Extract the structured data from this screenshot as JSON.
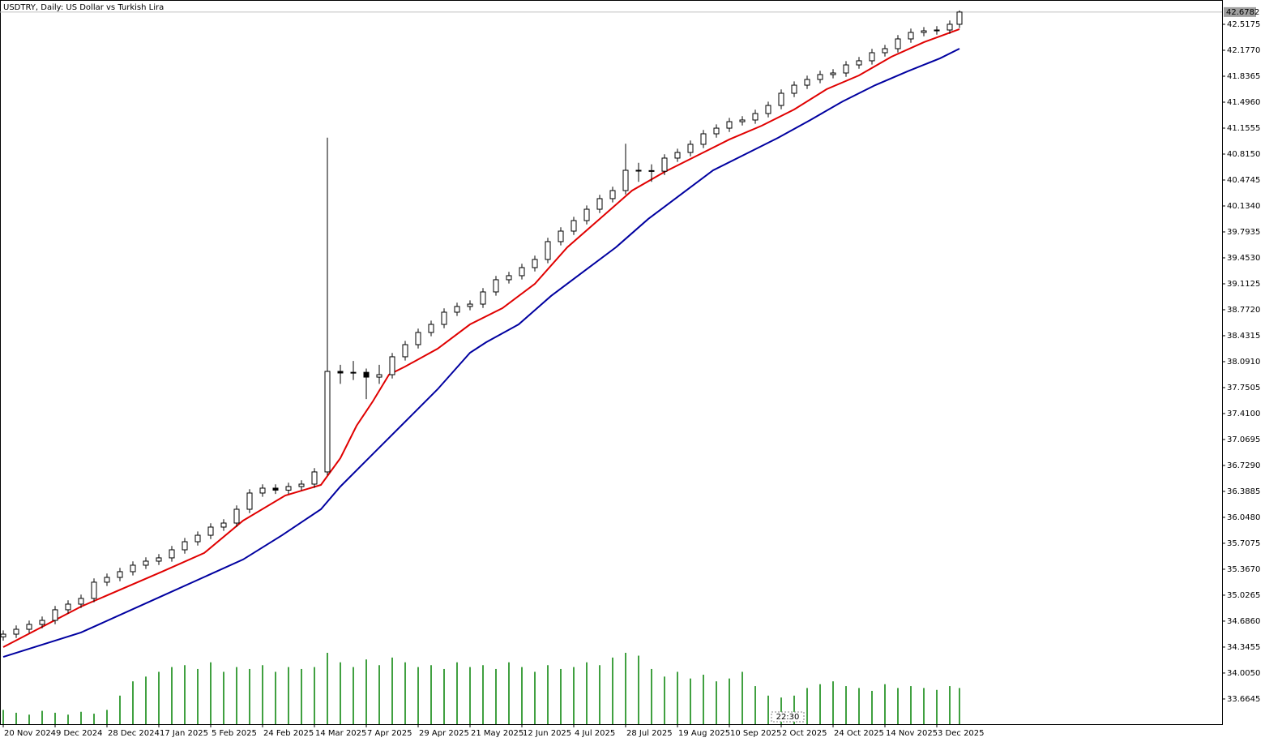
{
  "chart_data": {
    "type": "candlestick",
    "title": "USDTRY, Daily:  US Dollar vs Turkish Lira",
    "last_price": 42.6782,
    "time_marker": "22:30",
    "xlim": [
      -1,
      376
    ],
    "ylim": [
      33.334,
      42.8367
    ],
    "yticks": [
      42.5175,
      {
        "value": 42.177,
        "label": "42.1770"
      },
      41.8365,
      {
        "value": 41.496,
        "label": "41.4960"
      },
      41.1555,
      {
        "value": 40.815,
        "label": "40.8150"
      },
      40.4745,
      {
        "value": 40.134,
        "label": "40.1340"
      },
      39.7935,
      {
        "value": 39.453,
        "label": "39.4530"
      },
      39.1125,
      {
        "value": 38.772,
        "label": "38.7720"
      },
      38.4315,
      {
        "value": 38.091,
        "label": "38.0910"
      },
      37.7505,
      {
        "value": 37.41,
        "label": "37.4100"
      },
      37.0695,
      {
        "value": 36.729,
        "label": "36.7290"
      },
      36.3885,
      {
        "value": 36.048,
        "label": "36.0480"
      },
      35.7075,
      {
        "value": 35.367,
        "label": "35.3670"
      },
      35.0265,
      {
        "value": 34.686,
        "label": "34.6860"
      },
      34.3455,
      {
        "value": 34.005,
        "label": "34.0050"
      },
      33.6645
    ],
    "xticks": [
      {
        "value": 0,
        "label": "20 Nov 2024"
      },
      {
        "value": 16,
        "label": "9 Dec 2024"
      },
      {
        "value": 32,
        "label": "28 Dec 2024"
      },
      {
        "value": 48,
        "label": "17 Jan 2025"
      },
      {
        "value": 64,
        "label": "5 Feb 2025"
      },
      {
        "value": 80,
        "label": "24 Feb 2025"
      },
      {
        "value": 96,
        "label": "14 Mar 2025"
      },
      {
        "value": 112,
        "label": "7 Apr 2025"
      },
      {
        "value": 128,
        "label": "29 Apr 2025"
      },
      {
        "value": 144,
        "label": "21 May 2025"
      },
      {
        "value": 160,
        "label": "12 Jun 2025"
      },
      {
        "value": 176,
        "label": "4 Jul 2025"
      },
      {
        "value": 192,
        "label": "28 Jul 2025"
      },
      {
        "value": 208,
        "label": "19 Aug 2025"
      },
      {
        "value": 224,
        "label": "10 Sep 2025"
      },
      {
        "value": 240,
        "label": "2 Oct 2025"
      },
      {
        "value": 256,
        "label": "24 Oct 2025"
      },
      {
        "value": 272,
        "label": "14 Nov 2025"
      },
      {
        "value": 288,
        "label": "3 Dec 2025"
      }
    ],
    "x": [
      0,
      4,
      8,
      12,
      16,
      20,
      24,
      28,
      32,
      36,
      40,
      44,
      48,
      52,
      56,
      60,
      64,
      68,
      72,
      76,
      80,
      84,
      88,
      92,
      96,
      100,
      104,
      108,
      112,
      116,
      120,
      124,
      128,
      132,
      136,
      140,
      144,
      148,
      152,
      156,
      160,
      164,
      168,
      172,
      176,
      180,
      184,
      188,
      192,
      196,
      200,
      204,
      208,
      212,
      216,
      220,
      224,
      228,
      232,
      236,
      240,
      244,
      248,
      252,
      256,
      260,
      264,
      268,
      272,
      276,
      280,
      284,
      288,
      292,
      295
    ],
    "open": [
      34.48,
      34.515,
      34.579,
      34.643,
      34.696,
      34.835,
      34.909,
      34.984,
      35.197,
      35.26,
      35.335,
      35.42,
      35.473,
      35.516,
      35.622,
      35.728,
      35.813,
      35.92,
      35.973,
      36.154,
      36.367,
      36.431,
      36.405,
      36.452,
      36.484,
      36.644,
      37.963,
      37.942,
      37.951,
      37.888,
      37.92,
      38.155,
      38.314,
      38.474,
      38.58,
      38.74,
      38.815,
      38.846,
      39.006,
      39.166,
      39.219,
      39.325,
      39.432,
      39.666,
      39.804,
      39.942,
      40.091,
      40.23,
      40.336,
      40.602,
      40.598,
      40.59,
      40.762,
      40.836,
      40.943,
      41.081,
      41.155,
      41.24,
      41.262,
      41.347,
      41.453,
      41.613,
      41.719,
      41.794,
      41.858,
      41.879,
      41.985,
      42.039,
      42.145,
      42.198,
      42.326,
      42.411,
      42.432,
      42.443,
      42.518
    ],
    "high": [
      34.565,
      34.629,
      34.693,
      34.746,
      34.885,
      34.959,
      35.034,
      35.247,
      35.31,
      35.385,
      35.47,
      35.523,
      35.566,
      35.672,
      35.778,
      35.863,
      35.97,
      36.023,
      36.204,
      36.417,
      36.481,
      36.481,
      36.502,
      36.534,
      36.694,
      41.03,
      38.05,
      38.1,
      38.0,
      38.05,
      38.205,
      38.364,
      38.524,
      38.63,
      38.79,
      38.865,
      38.896,
      39.056,
      39.216,
      39.269,
      39.375,
      39.482,
      39.716,
      39.854,
      39.992,
      40.141,
      40.28,
      40.386,
      40.95,
      40.7,
      40.68,
      40.812,
      40.886,
      40.993,
      41.131,
      41.205,
      41.29,
      41.312,
      41.397,
      41.503,
      41.663,
      41.769,
      41.844,
      41.908,
      41.929,
      42.035,
      42.089,
      42.195,
      42.248,
      42.376,
      42.461,
      42.482,
      42.493,
      42.568,
      42.7
    ],
    "low": [
      34.43,
      34.465,
      34.529,
      34.593,
      34.646,
      34.785,
      34.859,
      34.934,
      35.147,
      35.21,
      35.285,
      35.37,
      35.423,
      35.466,
      35.572,
      35.678,
      35.763,
      35.87,
      35.923,
      36.104,
      36.317,
      36.355,
      36.355,
      36.402,
      36.434,
      36.6,
      37.8,
      37.85,
      37.6,
      37.8,
      37.87,
      38.105,
      38.264,
      38.424,
      38.53,
      38.69,
      38.765,
      38.796,
      38.956,
      39.116,
      39.169,
      39.275,
      39.382,
      39.616,
      39.754,
      39.892,
      40.041,
      40.18,
      40.286,
      40.45,
      40.45,
      40.54,
      40.712,
      40.786,
      40.893,
      41.031,
      41.105,
      41.19,
      41.212,
      41.297,
      41.403,
      41.563,
      41.669,
      41.744,
      41.808,
      41.829,
      41.935,
      41.989,
      42.095,
      42.148,
      42.276,
      42.361,
      42.382,
      42.393,
      42.468
    ],
    "close": [
      34.515,
      34.579,
      34.643,
      34.696,
      34.835,
      34.909,
      34.984,
      35.197,
      35.26,
      35.335,
      35.42,
      35.473,
      35.516,
      35.622,
      35.728,
      35.813,
      35.92,
      35.973,
      36.154,
      36.367,
      36.431,
      36.405,
      36.452,
      36.484,
      36.644,
      37.963,
      37.942,
      37.951,
      37.888,
      37.92,
      38.155,
      38.314,
      38.474,
      38.58,
      38.74,
      38.815,
      38.846,
      39.006,
      39.166,
      39.219,
      39.325,
      39.432,
      39.666,
      39.804,
      39.942,
      40.091,
      40.23,
      40.336,
      40.602,
      40.598,
      40.59,
      40.762,
      40.836,
      40.943,
      41.081,
      41.155,
      41.24,
      41.262,
      41.347,
      41.453,
      41.613,
      41.719,
      41.794,
      41.858,
      41.879,
      41.985,
      42.039,
      42.145,
      42.198,
      42.326,
      42.411,
      42.432,
      42.443,
      42.518,
      42.6782
    ],
    "volume": [
      15,
      12,
      10,
      14,
      12,
      10,
      13,
      11,
      15,
      30,
      45,
      50,
      55,
      60,
      62,
      58,
      65,
      55,
      60,
      58,
      62,
      55,
      60,
      58,
      60,
      75,
      65,
      60,
      68,
      62,
      70,
      65,
      60,
      62,
      58,
      65,
      60,
      62,
      58,
      65,
      60,
      55,
      62,
      58,
      60,
      65,
      62,
      70,
      75,
      72,
      58,
      50,
      55,
      48,
      52,
      45,
      48,
      55,
      40,
      30,
      28,
      30,
      38,
      42,
      45,
      40,
      38,
      35,
      42,
      38,
      40,
      38,
      36,
      40,
      38
    ],
    "volume_color": "#008000",
    "up_color": "#ffffff",
    "down_color": "#000000",
    "lines": [
      {
        "color": "#e00000",
        "x": [
          0,
          24,
          49,
          62,
          74,
          87,
          98,
          104,
          109,
          114,
          119,
          124,
          134,
          144,
          154,
          164,
          174,
          184,
          194,
          204,
          214,
          224,
          234,
          244,
          254,
          264,
          274,
          284,
          295
        ],
        "values": [
          34.345,
          34.877,
          35.335,
          35.58,
          36.005,
          36.335,
          36.473,
          36.825,
          37.25,
          37.569,
          37.92,
          38.027,
          38.261,
          38.58,
          38.793,
          39.112,
          39.591,
          39.964,
          40.336,
          40.581,
          40.794,
          41.007,
          41.187,
          41.4,
          41.666,
          41.847,
          42.092,
          42.283,
          42.454
        ]
      },
      {
        "color": "#0000a0",
        "x": [
          0,
          24,
          49,
          74,
          86,
          98,
          104,
          114,
          124,
          134,
          144,
          149,
          159,
          169,
          179,
          189,
          199,
          209,
          219,
          229,
          239,
          249,
          259,
          269,
          279,
          289,
          295
        ],
        "values": [
          34.217,
          34.537,
          35.016,
          35.495,
          35.813,
          36.154,
          36.452,
          36.878,
          37.303,
          37.729,
          38.208,
          38.346,
          38.58,
          38.953,
          39.272,
          39.591,
          39.964,
          40.283,
          40.602,
          40.815,
          41.028,
          41.262,
          41.507,
          41.719,
          41.901,
          42.071,
          42.198
        ]
      }
    ]
  }
}
